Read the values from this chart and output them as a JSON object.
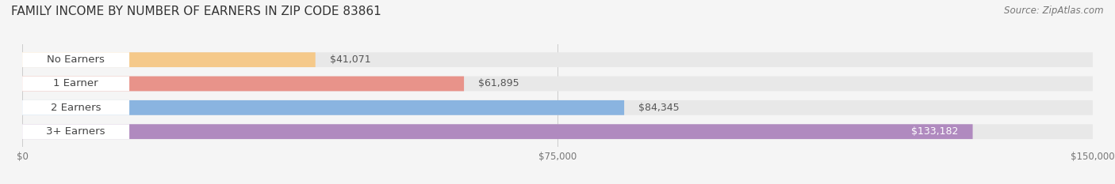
{
  "title": "FAMILY INCOME BY NUMBER OF EARNERS IN ZIP CODE 83861",
  "source": "Source: ZipAtlas.com",
  "categories": [
    "No Earners",
    "1 Earner",
    "2 Earners",
    "3+ Earners"
  ],
  "values": [
    41071,
    61895,
    84345,
    133182
  ],
  "labels": [
    "$41,071",
    "$61,895",
    "$84,345",
    "$133,182"
  ],
  "bar_colors": [
    "#f5c98a",
    "#e8938a",
    "#8ab4e0",
    "#b08abf"
  ],
  "bar_bg_color": "#e8e8e8",
  "label_bg_color": "#ffffff",
  "label_colors": [
    "#555555",
    "#555555",
    "#555555",
    "#ffffff"
  ],
  "xlim": [
    0,
    150000
  ],
  "xtick_values": [
    0,
    75000,
    150000
  ],
  "xtick_labels": [
    "$0",
    "$75,000",
    "$150,000"
  ],
  "background_color": "#f5f5f5",
  "title_fontsize": 11,
  "source_fontsize": 8.5,
  "label_fontsize": 9,
  "category_fontsize": 9.5,
  "bar_height": 0.62,
  "grid_color": "#cccccc"
}
